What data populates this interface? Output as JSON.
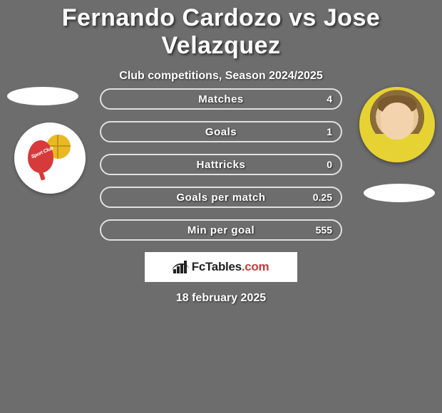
{
  "title": "Fernando Cardozo vs Jose Velazquez",
  "subtitle": "Club competitions, Season 2024/2025",
  "date": "18 february 2025",
  "logo": {
    "text_main": "FcTables",
    "text_suffix": ".com"
  },
  "stats": [
    {
      "label": "Matches",
      "value": "4"
    },
    {
      "label": "Goals",
      "value": "1"
    },
    {
      "label": "Hattricks",
      "value": "0"
    },
    {
      "label": "Goals per match",
      "value": "0.25"
    },
    {
      "label": "Min per goal",
      "value": "555"
    }
  ],
  "style": {
    "background_color": "#6d6d6d",
    "text_color": "#ffffff",
    "pill_border_color": "#e0e0e0",
    "title_fontsize": 34,
    "subtitle_fontsize": 16,
    "stat_label_fontsize": 15,
    "stat_value_fontsize": 14,
    "pill_width": 340,
    "pill_height": 30,
    "pill_gap": 16,
    "badge_colors": {
      "ball": "#e8b923",
      "racket": "#d63a3a",
      "bg": "#ffffff"
    },
    "avatar_colors": {
      "skin": "#f2d3ae",
      "hair": "#7a5a2e",
      "shirt": "#e6d233"
    },
    "logo_box": {
      "bg": "#ffffff",
      "text": "#222222",
      "dot": "#d03a3a"
    }
  }
}
